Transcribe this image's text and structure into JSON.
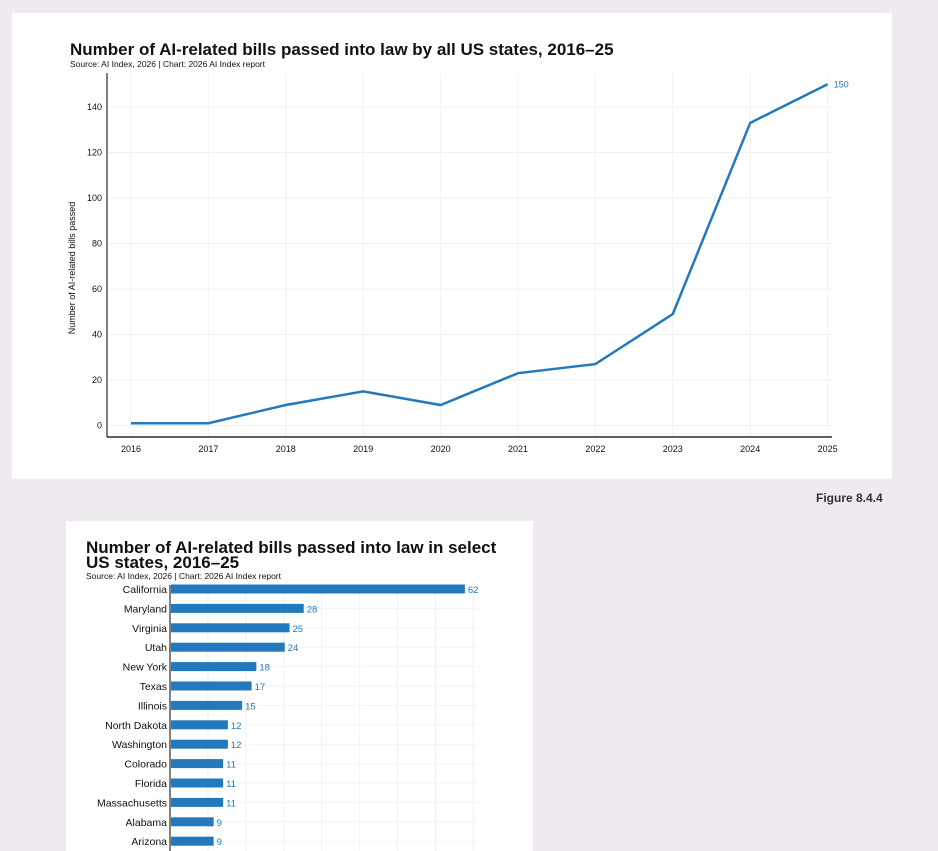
{
  "figure_label": "Figure 8.4.4",
  "chart_data": [
    {
      "type": "line",
      "title": "Number of AI-related bills passed into law by all US states, 2016–25",
      "subtitle": "Source: AI Index, 2026 | Chart: 2026 AI Index report",
      "xlabel": "",
      "ylabel": "Number of AI-related bills passed",
      "x": [
        2016,
        2017,
        2018,
        2019,
        2020,
        2021,
        2022,
        2023,
        2024,
        2025
      ],
      "y": [
        1,
        1,
        9,
        15,
        9,
        23,
        27,
        49,
        133,
        150
      ],
      "yticks": [
        0,
        20,
        40,
        60,
        80,
        100,
        120,
        140
      ],
      "ylim": [
        0,
        154
      ],
      "end_label": "150",
      "grid": true,
      "color": "#2279bd"
    },
    {
      "type": "bar",
      "orientation": "horizontal",
      "title_lines": [
        "Number of AI-related bills passed into law in select",
        "US states, 2016–25"
      ],
      "subtitle": "Source: AI Index, 2026 | Chart: 2026 AI Index report",
      "categories": [
        "California",
        "Maryland",
        "Virginia",
        "Utah",
        "New York",
        "Texas",
        "Illinois",
        "North Dakota",
        "Washington",
        "Colorado",
        "Florida",
        "Massachusetts",
        "Alabama",
        "Arizona"
      ],
      "values": [
        62,
        28,
        25,
        24,
        18,
        17,
        15,
        12,
        12,
        11,
        11,
        11,
        9,
        9
      ],
      "xlim": [
        0,
        65
      ],
      "grid": true,
      "color": "#2279bd"
    }
  ]
}
